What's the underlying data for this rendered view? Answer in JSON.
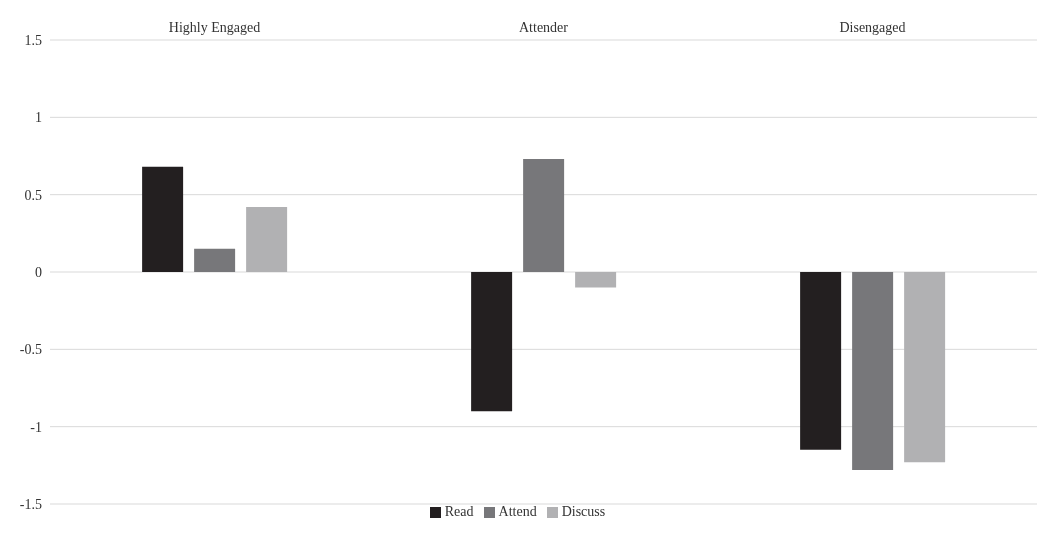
{
  "chart_data": {
    "type": "bar",
    "categories": [
      "Highly Engaged",
      "Attender",
      "Disengaged"
    ],
    "series": [
      {
        "name": "Read",
        "color": "#231f20",
        "values": [
          0.68,
          -0.9,
          -1.15
        ]
      },
      {
        "name": "Attend",
        "color": "#77777a",
        "values": [
          0.15,
          0.73,
          -1.28
        ]
      },
      {
        "name": "Discuss",
        "color": "#b1b1b3",
        "values": [
          0.42,
          -0.1,
          -1.23
        ]
      }
    ],
    "ylim": [
      -1.5,
      1.5
    ],
    "yticks": [
      -1.5,
      -1,
      -0.5,
      0,
      0.5,
      1,
      1.5
    ],
    "grid": "y",
    "legend": "bottom"
  }
}
